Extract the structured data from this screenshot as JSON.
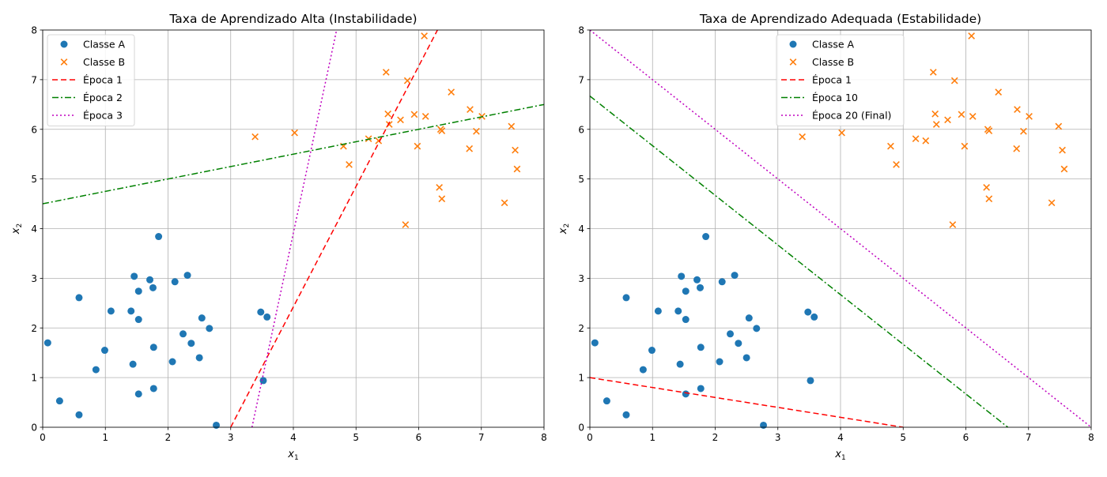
{
  "chart_data": [
    {
      "type": "scatter",
      "title": "Taxa de Aprendizado Alta (Instabilidade)",
      "xlabel": "x",
      "xlabel_sub": "1",
      "ylabel": "x",
      "ylabel_sub": "2",
      "xlim": [
        0,
        8
      ],
      "ylim": [
        0,
        8
      ],
      "xticks": [
        0,
        1,
        2,
        3,
        4,
        5,
        6,
        7,
        8
      ],
      "yticks": [
        0,
        1,
        2,
        3,
        4,
        5,
        6,
        7,
        8
      ],
      "grid": true,
      "legend_position": "top-left",
      "points": [
        {
          "name": "Classe A",
          "marker": "circle",
          "color": "#1f77b4",
          "x": [
            0.08,
            0.27,
            0.58,
            0.58,
            0.85,
            0.99,
            1.09,
            1.41,
            1.44,
            1.46,
            1.53,
            1.53,
            1.53,
            1.71,
            1.76,
            1.77,
            1.77,
            1.85,
            2.07,
            2.11,
            2.24,
            2.31,
            2.37,
            2.5,
            2.54,
            2.66,
            2.77,
            3.48,
            3.52,
            3.58
          ],
          "y": [
            1.7,
            0.53,
            2.61,
            0.25,
            1.16,
            1.55,
            2.34,
            2.34,
            1.27,
            3.04,
            2.74,
            2.17,
            0.67,
            2.97,
            2.81,
            1.61,
            0.78,
            3.84,
            1.32,
            2.93,
            1.88,
            3.06,
            1.69,
            1.4,
            2.2,
            1.99,
            0.04,
            2.32,
            0.94,
            2.22
          ]
        },
        {
          "name": "Classe B",
          "marker": "x",
          "color": "#ff7f0e",
          "x": [
            3.39,
            4.02,
            4.8,
            4.89,
            5.2,
            5.36,
            5.48,
            5.51,
            5.53,
            5.71,
            5.79,
            5.82,
            5.93,
            5.98,
            6.09,
            6.11,
            6.33,
            6.35,
            6.37,
            6.37,
            6.52,
            6.81,
            6.82,
            6.92,
            7.01,
            7.37,
            7.48,
            7.54,
            7.57
          ],
          "y": [
            5.85,
            5.93,
            5.66,
            5.29,
            5.81,
            5.77,
            7.15,
            6.31,
            6.1,
            6.19,
            4.08,
            6.98,
            6.3,
            5.66,
            7.88,
            6.26,
            4.83,
            6.0,
            5.97,
            4.6,
            6.75,
            5.61,
            6.4,
            5.96,
            6.26,
            4.52,
            6.06,
            5.58,
            5.2
          ]
        }
      ],
      "lines": [
        {
          "name": "Época 1",
          "color": "#ff0000",
          "style": "dashed",
          "x": [
            3.0,
            6.3
          ],
          "y": [
            0.0,
            8.0
          ]
        },
        {
          "name": "Época 2",
          "color": "#008000",
          "style": "dashdot",
          "x": [
            0.0,
            8.0
          ],
          "y": [
            4.5,
            6.5
          ]
        },
        {
          "name": "Época 3",
          "color": "#bf00bf",
          "style": "dotted",
          "x": [
            3.34,
            4.69
          ],
          "y": [
            0.0,
            8.0
          ]
        }
      ]
    },
    {
      "type": "scatter",
      "title": "Taxa de Aprendizado Adequada (Estabilidade)",
      "xlabel": "x",
      "xlabel_sub": "1",
      "ylabel": "x",
      "ylabel_sub": "2",
      "xlim": [
        0,
        8
      ],
      "ylim": [
        0,
        8
      ],
      "xticks": [
        0,
        1,
        2,
        3,
        4,
        5,
        6,
        7,
        8
      ],
      "yticks": [
        0,
        1,
        2,
        3,
        4,
        5,
        6,
        7,
        8
      ],
      "grid": true,
      "legend_position": "top-center",
      "points": [
        {
          "name": "Classe A",
          "marker": "circle",
          "color": "#1f77b4",
          "x": [
            0.08,
            0.27,
            0.58,
            0.58,
            0.85,
            0.99,
            1.09,
            1.41,
            1.44,
            1.46,
            1.53,
            1.53,
            1.53,
            1.71,
            1.76,
            1.77,
            1.77,
            1.85,
            2.07,
            2.11,
            2.24,
            2.31,
            2.37,
            2.5,
            2.54,
            2.66,
            2.77,
            3.48,
            3.52,
            3.58
          ],
          "y": [
            1.7,
            0.53,
            2.61,
            0.25,
            1.16,
            1.55,
            2.34,
            2.34,
            1.27,
            3.04,
            2.74,
            2.17,
            0.67,
            2.97,
            2.81,
            1.61,
            0.78,
            3.84,
            1.32,
            2.93,
            1.88,
            3.06,
            1.69,
            1.4,
            2.2,
            1.99,
            0.04,
            2.32,
            0.94,
            2.22
          ]
        },
        {
          "name": "Classe B",
          "marker": "x",
          "color": "#ff7f0e",
          "x": [
            3.39,
            4.02,
            4.8,
            4.89,
            5.2,
            5.36,
            5.48,
            5.51,
            5.53,
            5.71,
            5.79,
            5.82,
            5.93,
            5.98,
            6.09,
            6.11,
            6.33,
            6.35,
            6.37,
            6.37,
            6.52,
            6.81,
            6.82,
            6.92,
            7.01,
            7.37,
            7.48,
            7.54,
            7.57
          ],
          "y": [
            5.85,
            5.93,
            5.66,
            5.29,
            5.81,
            5.77,
            7.15,
            6.31,
            6.1,
            6.19,
            4.08,
            6.98,
            6.3,
            5.66,
            7.88,
            6.26,
            4.83,
            6.0,
            5.97,
            4.6,
            6.75,
            5.61,
            6.4,
            5.96,
            6.26,
            4.52,
            6.06,
            5.58,
            5.2
          ]
        }
      ],
      "lines": [
        {
          "name": "Época 1",
          "color": "#ff0000",
          "style": "dashed",
          "x": [
            0.0,
            5.0
          ],
          "y": [
            1.0,
            0.0
          ]
        },
        {
          "name": "Época 10",
          "color": "#008000",
          "style": "dashdot",
          "x": [
            0.0,
            6.67
          ],
          "y": [
            6.67,
            0.0
          ]
        },
        {
          "name": "Época 20 (Final)",
          "color": "#bf00bf",
          "style": "dotted",
          "x": [
            0.0,
            8.0
          ],
          "y": [
            8.0,
            0.0
          ]
        }
      ]
    }
  ]
}
